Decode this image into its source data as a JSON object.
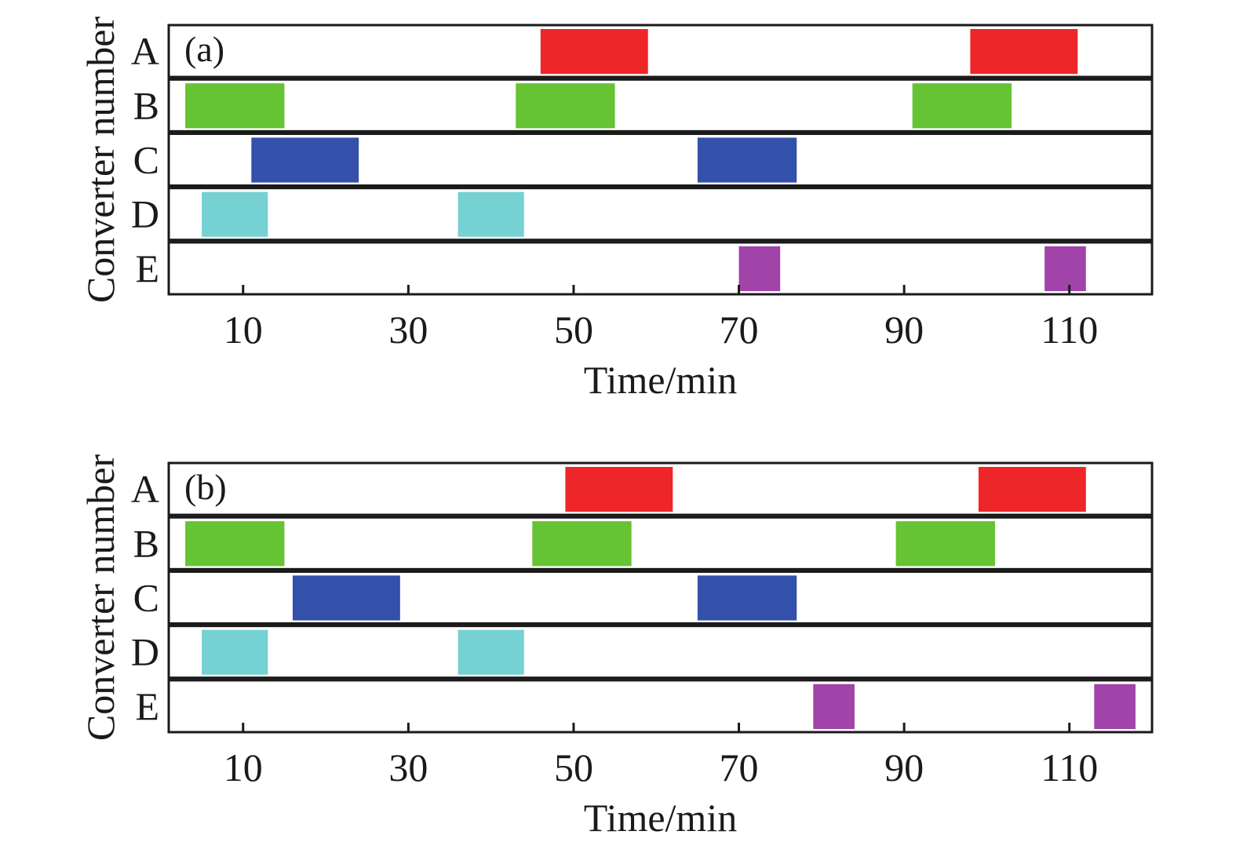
{
  "chart_data": [
    {
      "type": "gantt",
      "panel_label": "(a)",
      "ylabel": "Converter number",
      "xlabel": "Time/min",
      "xlim": [
        1,
        120
      ],
      "xticks": [
        10,
        30,
        50,
        70,
        90,
        110
      ],
      "rows": [
        "A",
        "B",
        "C",
        "D",
        "E"
      ],
      "tasks": [
        {
          "row": "A",
          "start": 46,
          "end": 59,
          "color": "#ee2529"
        },
        {
          "row": "A",
          "start": 98,
          "end": 111,
          "color": "#ee2529"
        },
        {
          "row": "B",
          "start": 3,
          "end": 15,
          "color": "#66c333"
        },
        {
          "row": "B",
          "start": 43,
          "end": 55,
          "color": "#66c333"
        },
        {
          "row": "B",
          "start": 91,
          "end": 103,
          "color": "#66c333"
        },
        {
          "row": "C",
          "start": 11,
          "end": 24,
          "color": "#3350aa"
        },
        {
          "row": "C",
          "start": 65,
          "end": 77,
          "color": "#3350aa"
        },
        {
          "row": "D",
          "start": 5,
          "end": 13,
          "color": "#76d1d3"
        },
        {
          "row": "D",
          "start": 36,
          "end": 44,
          "color": "#76d1d3"
        },
        {
          "row": "E",
          "start": 70,
          "end": 75,
          "color": "#a144aa"
        },
        {
          "row": "E",
          "start": 107,
          "end": 112,
          "color": "#a144aa"
        }
      ]
    },
    {
      "type": "gantt",
      "panel_label": "(b)",
      "ylabel": "Converter number",
      "xlabel": "Time/min",
      "xlim": [
        1,
        120
      ],
      "xticks": [
        10,
        30,
        50,
        70,
        90,
        110
      ],
      "rows": [
        "A",
        "B",
        "C",
        "D",
        "E"
      ],
      "tasks": [
        {
          "row": "A",
          "start": 49,
          "end": 62,
          "color": "#ee2529"
        },
        {
          "row": "A",
          "start": 99,
          "end": 112,
          "color": "#ee2529"
        },
        {
          "row": "B",
          "start": 3,
          "end": 15,
          "color": "#66c333"
        },
        {
          "row": "B",
          "start": 45,
          "end": 57,
          "color": "#66c333"
        },
        {
          "row": "B",
          "start": 89,
          "end": 101,
          "color": "#66c333"
        },
        {
          "row": "C",
          "start": 16,
          "end": 29,
          "color": "#3350aa"
        },
        {
          "row": "C",
          "start": 65,
          "end": 77,
          "color": "#3350aa"
        },
        {
          "row": "D",
          "start": 5,
          "end": 13,
          "color": "#76d1d3"
        },
        {
          "row": "D",
          "start": 36,
          "end": 44,
          "color": "#76d1d3"
        },
        {
          "row": "E",
          "start": 79,
          "end": 84,
          "color": "#a144aa"
        },
        {
          "row": "E",
          "start": 113,
          "end": 118,
          "color": "#a144aa"
        }
      ]
    }
  ]
}
